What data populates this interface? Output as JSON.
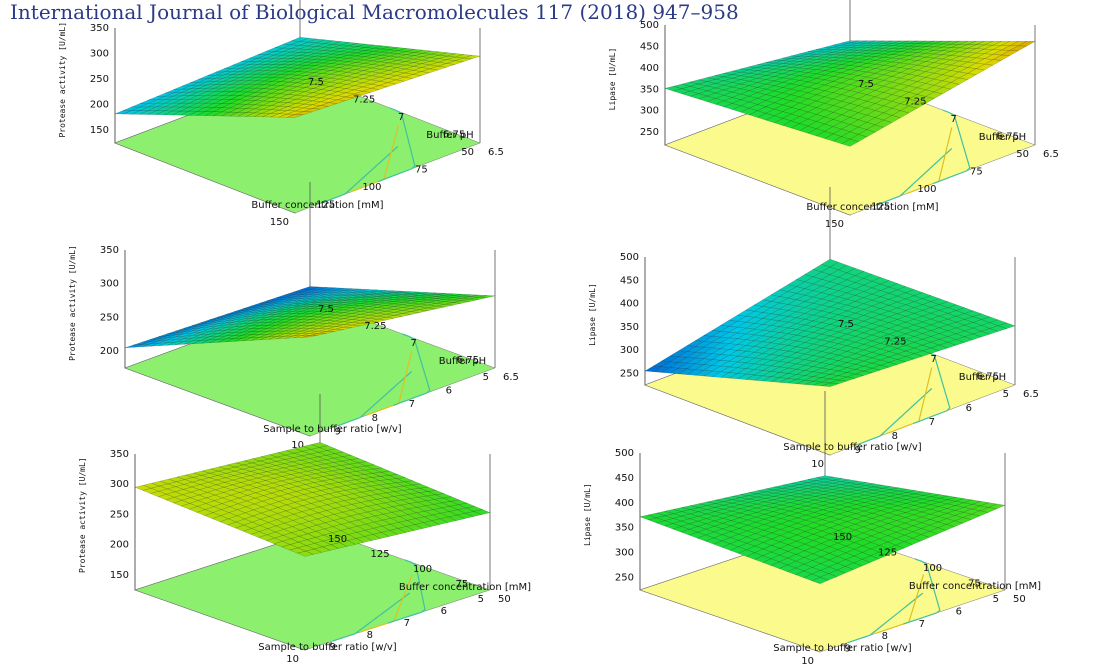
{
  "header": {
    "journal": "International Journal of Biological Macromolecules 117 (2018) 947–958"
  },
  "colors": {
    "floor_protease": "#8cf06e",
    "floor_lipase": "#fbfa8c",
    "frame": "#555555"
  },
  "chart_data": [
    {
      "type": "surface",
      "zlabel": "Protease activity [U/mL]",
      "xlabel": "Buffer concentration [mM]",
      "ylabel": "Buffer pH",
      "xticks": [
        "150",
        "125",
        "100",
        "75",
        "50"
      ],
      "yticks": [
        "6.5",
        "6.75",
        "7",
        "7.25",
        "7.5"
      ],
      "zticks": [
        "150",
        "200",
        "250",
        "300",
        "350"
      ],
      "xlim": [
        150,
        50
      ],
      "ylim": [
        6.5,
        7.5
      ],
      "zlim": [
        125,
        350
      ],
      "surface_corners": {
        "x_min_y_min": 182,
        "x_max_y_min": 195,
        "x_min_y_max": 312,
        "x_max_y_max": 295
      }
    },
    {
      "type": "surface",
      "zlabel": "Lipase [U/mL]",
      "xlabel": "Buffer concentration [mM]",
      "ylabel": "Buffer pH",
      "xticks": [
        "150",
        "125",
        "100",
        "75",
        "50"
      ],
      "yticks": [
        "6.5",
        "6.75",
        "7",
        "7.25",
        "7.5"
      ],
      "zticks": [
        "250",
        "300",
        "350",
        "400",
        "450",
        "500"
      ],
      "xlim": [
        150,
        50
      ],
      "ylim": [
        6.5,
        7.5
      ],
      "zlim": [
        220,
        500
      ],
      "surface_corners": {
        "x_min_y_min": 352,
        "x_max_y_min": 300,
        "x_min_y_max": 380,
        "x_max_y_max": 462
      }
    },
    {
      "type": "surface",
      "zlabel": "Protease activity [U/mL]",
      "xlabel": "Sample to buffer ratio [w/v]",
      "ylabel": "Buffer pH",
      "xticks": [
        "10",
        "9",
        "8",
        "7",
        "6",
        "5"
      ],
      "yticks": [
        "6.5",
        "6.75",
        "7",
        "7.25",
        "7.5"
      ],
      "zticks": [
        "200",
        "250",
        "300",
        "350"
      ],
      "xlim": [
        10,
        5
      ],
      "ylim": [
        6.5,
        7.5
      ],
      "zlim": [
        175,
        350
      ],
      "surface_corners": {
        "x_min_y_min": 205,
        "x_max_y_min": 195,
        "x_min_y_max": 322,
        "x_max_y_max": 282
      }
    },
    {
      "type": "surface",
      "zlabel": "Lipase [U/mL]",
      "xlabel": "Sample to buffer ratio [w/v]",
      "ylabel": "Buffer pH",
      "xticks": [
        "10",
        "9",
        "8",
        "7",
        "6",
        "5"
      ],
      "yticks": [
        "6.5",
        "6.75",
        "7",
        "7.25",
        "7.5"
      ],
      "zticks": [
        "250",
        "300",
        "350",
        "400",
        "450",
        "500"
      ],
      "xlim": [
        10,
        5
      ],
      "ylim": [
        6.5,
        7.5
      ],
      "zlim": [
        225,
        500
      ],
      "surface_corners": {
        "x_min_y_min": 255,
        "x_max_y_min": 345,
        "x_min_y_max": 372,
        "x_max_y_max": 352
      }
    },
    {
      "type": "surface",
      "zlabel": "Protease activity [U/mL]",
      "xlabel": "Sample to buffer ratio [w/v]",
      "ylabel": "Buffer concentration [mM]",
      "xticks": [
        "10",
        "9",
        "8",
        "7",
        "6",
        "5"
      ],
      "yticks": [
        "50",
        "75",
        "100",
        "125",
        "150"
      ],
      "zticks": [
        "150",
        "200",
        "250",
        "300",
        "350"
      ],
      "xlim": [
        10,
        5
      ],
      "ylim": [
        50,
        150
      ],
      "zlim": [
        125,
        350
      ],
      "surface_corners": {
        "x_min_y_min": 295,
        "x_max_y_min": 270,
        "x_min_y_max": 280,
        "x_max_y_max": 253
      }
    },
    {
      "type": "surface",
      "zlabel": "Lipase [U/mL]",
      "xlabel": "Sample to buffer ratio [w/v]",
      "ylabel": "Buffer concentration [mM]",
      "xticks": [
        "10",
        "9",
        "8",
        "7",
        "6",
        "5"
      ],
      "yticks": [
        "50",
        "75",
        "100",
        "125",
        "150"
      ],
      "zticks": [
        "250",
        "300",
        "350",
        "400",
        "450",
        "500"
      ],
      "xlim": [
        10,
        5
      ],
      "ylim": [
        50,
        150
      ],
      "zlim": [
        225,
        500
      ],
      "surface_corners": {
        "x_min_y_min": 372,
        "x_max_y_min": 330,
        "x_min_y_max": 362,
        "x_max_y_max": 395
      }
    }
  ]
}
